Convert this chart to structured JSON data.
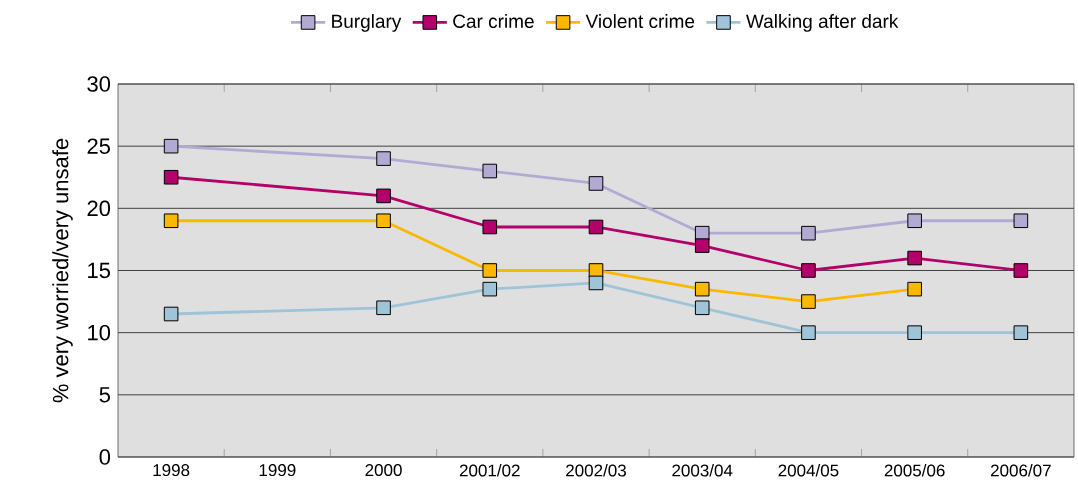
{
  "chart_data": {
    "type": "line",
    "ylabel": "% very worried/very unsafe",
    "categories": [
      "1998",
      "1999",
      "2000",
      "2001/02",
      "2002/03",
      "2003/04",
      "2004/05",
      "2005/06",
      "2006/07"
    ],
    "series": [
      {
        "name": "Burglary",
        "color": "#b3aad4",
        "values": [
          25,
          null,
          24,
          23,
          22,
          18,
          18,
          19,
          19
        ]
      },
      {
        "name": "Car crime",
        "color": "#b4006a",
        "values": [
          22.5,
          null,
          21,
          18.5,
          18.5,
          17,
          15,
          16,
          15
        ]
      },
      {
        "name": "Violent crime",
        "color": "#fbb800",
        "values": [
          19,
          null,
          19,
          15,
          15,
          13.5,
          12.5,
          13.5,
          null
        ]
      },
      {
        "name": "Walking after dark",
        "color": "#9fc4d8",
        "values": [
          11.5,
          null,
          12,
          13.5,
          14,
          12,
          10,
          10,
          10
        ]
      }
    ],
    "ylim": [
      0,
      30
    ],
    "yticks": [
      0,
      5,
      10,
      15,
      20,
      25,
      30
    ],
    "grid": "y",
    "legend": "top",
    "marker": "square"
  }
}
